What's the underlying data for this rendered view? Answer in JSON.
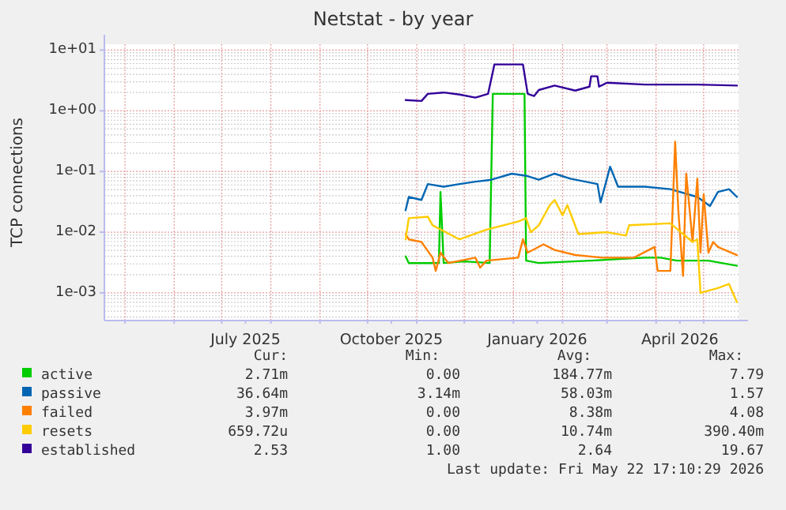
{
  "chart_data": {
    "type": "line",
    "title": "Netstat - by year",
    "ylabel": "TCP connections",
    "log": true,
    "grid": true,
    "legend": "bottom",
    "line_style": "solid",
    "marker": "none",
    "xlim": [
      "2025-04-18",
      "2026-05-23"
    ],
    "xticks": [
      {
        "value": "2025-05-01",
        "label": null
      },
      {
        "value": "2025-06-01",
        "label": null
      },
      {
        "value": "2025-07-01",
        "label": null
      },
      {
        "value": "2025-07-16",
        "label": "July 2025"
      },
      {
        "value": "2025-08-01",
        "label": null
      },
      {
        "value": "2025-09-01",
        "label": null
      },
      {
        "value": "2025-10-01",
        "label": null
      },
      {
        "value": "2025-10-16",
        "label": "October 2025"
      },
      {
        "value": "2025-11-01",
        "label": null
      },
      {
        "value": "2025-12-01",
        "label": null
      },
      {
        "value": "2026-01-01",
        "label": null
      },
      {
        "value": "2026-01-16",
        "label": "January 2026"
      },
      {
        "value": "2026-02-01",
        "label": null
      },
      {
        "value": "2026-03-01",
        "label": null
      },
      {
        "value": "2026-04-01",
        "label": null
      },
      {
        "value": "2026-04-16",
        "label": "April 2026"
      },
      {
        "value": "2026-05-01",
        "label": null
      }
    ],
    "ylim": [
      0.00035,
      12.5
    ],
    "yticks": [
      {
        "value": 0.001,
        "label": "1e-03"
      },
      {
        "value": 0.01,
        "label": "1e-02"
      },
      {
        "value": 0.1,
        "label": "1e-01"
      },
      {
        "value": 1,
        "label": "1e+00"
      },
      {
        "value": 10,
        "label": "1e+01"
      }
    ],
    "series": [
      {
        "name": "active",
        "color": "#00cc00",
        "x": [
          "2025-10-25",
          "2025-10-27",
          "2025-11-15",
          "2025-11-16",
          "2025-11-18",
          "2025-12-01",
          "2025-12-17",
          "2025-12-19",
          "2026-01-08",
          "2026-01-09",
          "2026-01-17",
          "2026-02-19",
          "2026-03-25",
          "2026-04-04",
          "2026-04-14",
          "2026-05-04",
          "2026-05-22"
        ],
        "values": [
          0.004,
          0.0031,
          0.0031,
          0.046,
          0.0031,
          0.0033,
          0.0031,
          1.9,
          1.9,
          0.0034,
          0.0031,
          0.0034,
          0.0038,
          0.0038,
          0.0034,
          0.0034,
          0.0028
        ]
      },
      {
        "name": "passive",
        "color": "#0066b3",
        "x": [
          "2025-10-25",
          "2025-10-27",
          "2025-11-04",
          "2025-11-08",
          "2025-11-18",
          "2025-11-28",
          "2025-12-08",
          "2025-12-18",
          "2025-12-31",
          "2026-01-10",
          "2026-01-17",
          "2026-01-27",
          "2026-02-06",
          "2026-02-23",
          "2026-02-25",
          "2026-03-03",
          "2026-03-08",
          "2026-03-25",
          "2026-04-10",
          "2026-04-27",
          "2026-05-05",
          "2026-05-10",
          "2026-05-17",
          "2026-05-22"
        ],
        "values": [
          0.023,
          0.038,
          0.034,
          0.062,
          0.056,
          0.062,
          0.068,
          0.073,
          0.092,
          0.084,
          0.073,
          0.092,
          0.076,
          0.062,
          0.031,
          0.12,
          0.056,
          0.056,
          0.051,
          0.038,
          0.027,
          0.046,
          0.051,
          0.038
        ]
      },
      {
        "name": "failed",
        "color": "#ff8000",
        "x": [
          "2025-10-25",
          "2025-10-27",
          "2025-11-04",
          "2025-11-11",
          "2025-11-13",
          "2025-11-16",
          "2025-11-21",
          "2025-12-08",
          "2025-12-11",
          "2025-12-15",
          "2026-01-04",
          "2026-01-07",
          "2026-01-10",
          "2026-01-20",
          "2026-01-27",
          "2026-02-09",
          "2026-02-26",
          "2026-03-18",
          "2026-03-31",
          "2026-04-02",
          "2026-04-10",
          "2026-04-13",
          "2026-04-15",
          "2026-04-18",
          "2026-04-20",
          "2026-04-24",
          "2026-04-27",
          "2026-04-29",
          "2026-05-01",
          "2026-05-04",
          "2026-05-07",
          "2026-05-10",
          "2026-05-22"
        ],
        "values": [
          0.0093,
          0.0076,
          0.0069,
          0.0038,
          0.0023,
          0.0046,
          0.0031,
          0.0038,
          0.0026,
          0.0034,
          0.0038,
          0.0076,
          0.0046,
          0.0063,
          0.0051,
          0.0042,
          0.0038,
          0.0038,
          0.0057,
          0.0023,
          0.0023,
          0.31,
          0.023,
          0.0019,
          0.092,
          0.0069,
          0.076,
          0.0046,
          0.042,
          0.0046,
          0.0069,
          0.0057,
          0.0042
        ]
      },
      {
        "name": "resets",
        "color": "#ffcc00",
        "x": [
          "2025-10-25",
          "2025-10-27",
          "2025-11-08",
          "2025-11-11",
          "2025-11-28",
          "2025-12-15",
          "2026-01-04",
          "2026-01-09",
          "2026-01-12",
          "2026-01-17",
          "2026-01-24",
          "2026-01-27",
          "2026-02-01",
          "2026-02-04",
          "2026-02-11",
          "2026-03-01",
          "2026-03-13",
          "2026-03-15",
          "2026-04-10",
          "2026-04-24",
          "2026-04-27",
          "2026-04-29",
          "2026-05-10",
          "2026-05-17",
          "2026-05-22"
        ],
        "values": [
          0.0076,
          0.017,
          0.018,
          0.013,
          0.0076,
          0.011,
          0.015,
          0.017,
          0.01,
          0.013,
          0.028,
          0.034,
          0.019,
          0.028,
          0.0093,
          0.01,
          0.0088,
          0.013,
          0.014,
          0.0069,
          0.0076,
          0.001,
          0.0012,
          0.0014,
          0.0007
        ]
      },
      {
        "name": "established",
        "color": "#330099",
        "x": [
          "2025-10-25",
          "2025-11-04",
          "2025-11-08",
          "2025-11-18",
          "2025-11-28",
          "2025-12-08",
          "2025-12-16",
          "2025-12-20",
          "2026-01-07",
          "2026-01-10",
          "2026-01-14",
          "2026-01-17",
          "2026-01-27",
          "2026-02-09",
          "2026-02-18",
          "2026-02-19",
          "2026-02-23",
          "2026-02-24",
          "2026-03-01",
          "2026-03-25",
          "2026-04-27",
          "2026-05-22"
        ],
        "values": [
          1.5,
          1.45,
          1.9,
          2.0,
          1.85,
          1.65,
          1.9,
          5.8,
          5.8,
          1.9,
          1.75,
          2.2,
          2.6,
          2.15,
          2.5,
          3.7,
          3.7,
          2.5,
          2.9,
          2.7,
          2.7,
          2.6
        ]
      }
    ],
    "annotations": [
      "Cur:",
      "Min:",
      "Avg:",
      "Max:",
      "2.71m",
      "0.00",
      "184.77m",
      "7.79",
      "36.64m",
      "3.14m",
      "58.03m",
      "1.57",
      "3.97m",
      "0.00",
      "8.38m",
      "4.08",
      "659.72u",
      "0.00",
      "10.74m",
      "390.40m",
      "2.53",
      "1.00",
      "2.64",
      "19.67",
      "Last update: Fri May 22 17:10:29 2026"
    ]
  }
}
